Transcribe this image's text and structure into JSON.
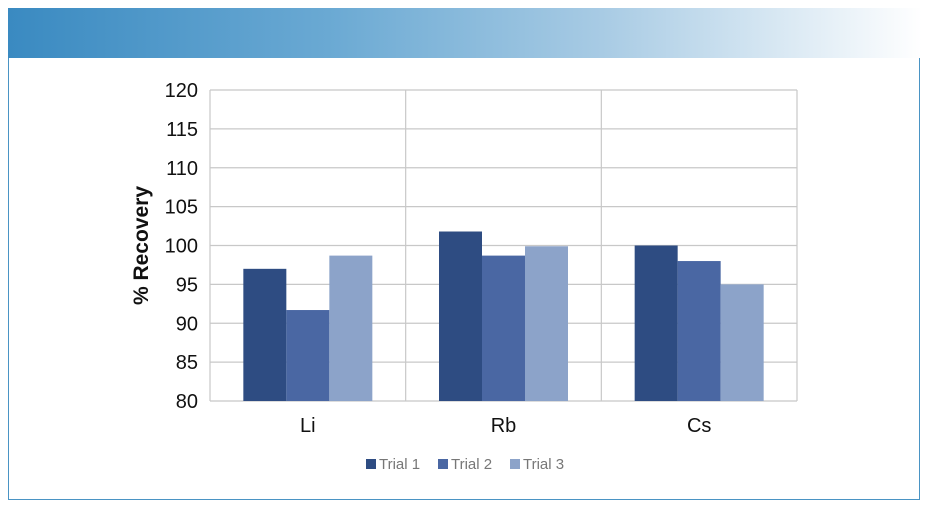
{
  "chart_data": {
    "type": "bar",
    "categories": [
      "Li",
      "Rb",
      "Cs"
    ],
    "series": [
      {
        "name": "Trial 1",
        "values": [
          97.0,
          101.8,
          100.0
        ],
        "color": "#2e4c82"
      },
      {
        "name": "Trial 2",
        "values": [
          91.7,
          98.7,
          98.0
        ],
        "color": "#4a67a3"
      },
      {
        "name": "Trial 3",
        "values": [
          98.7,
          99.9,
          95.0
        ],
        "color": "#8ca3c9"
      }
    ],
    "title": "",
    "xlabel": "",
    "ylabel": "% Recovery",
    "ylim": [
      80,
      120
    ],
    "yticks": [
      80,
      85,
      90,
      95,
      100,
      105,
      110,
      115,
      120
    ],
    "grid": true,
    "legend_position": "bottom"
  }
}
